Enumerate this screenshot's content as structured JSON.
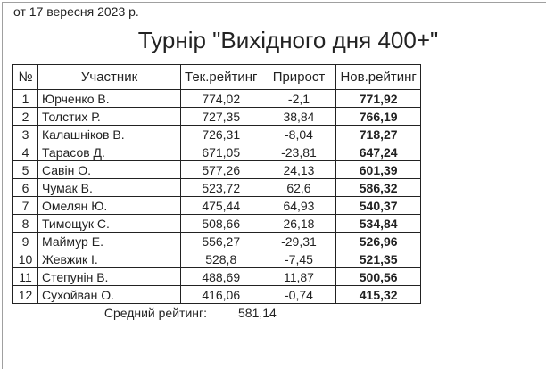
{
  "date": "от 17 вересня 2023 р.",
  "title": "Турнір \"Вихідного дня 400+\"",
  "table": {
    "headers": [
      "№",
      "Участник",
      "Тек.рейтинг",
      "Прирост",
      "Нов.рейтинг"
    ],
    "rows": [
      [
        "1",
        "Юрченко В.",
        "774,02",
        "-2,1",
        "771,92"
      ],
      [
        "2",
        "Толстих Р.",
        "727,35",
        "38,84",
        "766,19"
      ],
      [
        "3",
        "Калашніков В.",
        "726,31",
        "-8,04",
        "718,27"
      ],
      [
        "4",
        "Тарасов Д.",
        "671,05",
        "-23,81",
        "647,24"
      ],
      [
        "5",
        "Савін О.",
        "577,26",
        "24,13",
        "601,39"
      ],
      [
        "6",
        "Чумак В.",
        "523,72",
        "62,6",
        "586,32"
      ],
      [
        "7",
        "Омелян Ю.",
        "475,44",
        "64,93",
        "540,37"
      ],
      [
        "8",
        "Тимощук С.",
        "508,66",
        "26,18",
        "534,84"
      ],
      [
        "9",
        "Маймур Е.",
        "556,27",
        "-29,31",
        "526,96"
      ],
      [
        "10",
        "Жевжик І.",
        "528,8",
        "-7,45",
        "521,35"
      ],
      [
        "11",
        "Степунін В.",
        "488,69",
        "11,87",
        "500,56"
      ],
      [
        "12",
        "Сухойван О.",
        "416,06",
        "-0,74",
        "415,32"
      ]
    ]
  },
  "average": {
    "label": "Средний рейтинг:",
    "value": "581,14"
  }
}
